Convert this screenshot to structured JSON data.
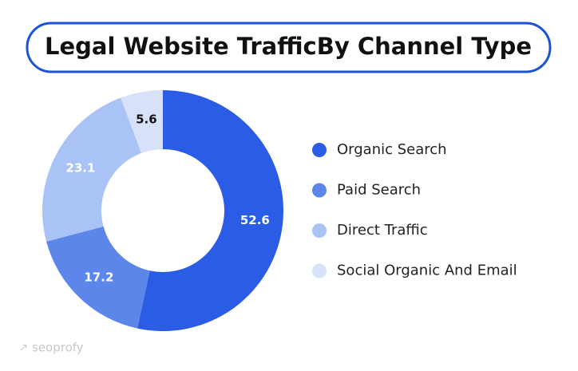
{
  "chart_data": {
    "type": "donut",
    "title": "Legal Website TrafficBy Channel Type",
    "categories": [
      "Organic Search",
      "Paid Search",
      "Direct Traffic",
      "Social Organic And Email"
    ],
    "values": [
      52.6,
      17.2,
      23.1,
      5.6
    ],
    "colors": [
      "#2a5ce6",
      "#5c86ea",
      "#aac3f6",
      "#d7e2fa"
    ],
    "label_colors": [
      "#ffffff",
      "#ffffff",
      "#ffffff",
      "#111111"
    ],
    "legend": "right",
    "watermark": "seoprofy"
  }
}
